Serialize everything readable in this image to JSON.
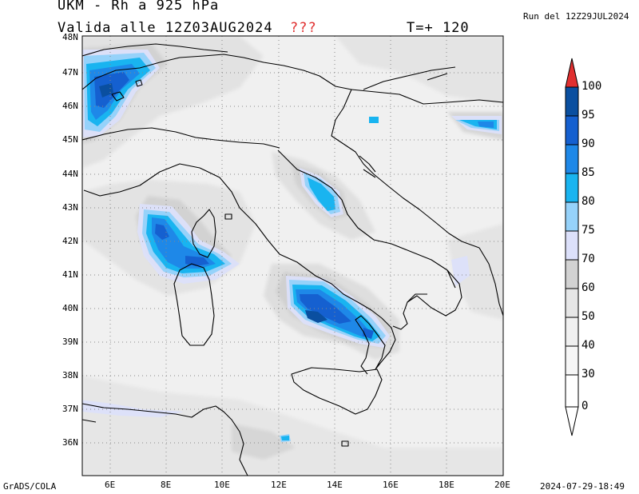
{
  "header": {
    "title": "UKM - Rh a 925 hPa",
    "valid": "Valida alle 12Z03AUG2024",
    "flag": "???",
    "lead": "T=+ 120",
    "run": "Run del 12Z29JUL2024"
  },
  "footer": {
    "left": "GrADS/COLA",
    "right": "2024-07-29-18:49"
  },
  "axes": {
    "lat_labels": [
      "48N",
      "47N",
      "46N",
      "45N",
      "44N",
      "43N",
      "42N",
      "41N",
      "40N",
      "39N",
      "38N",
      "37N",
      "36N"
    ],
    "lon_labels": [
      "6E",
      "8E",
      "10E",
      "12E",
      "14E",
      "16E",
      "18E",
      "20E"
    ],
    "lat_range": [
      35.2,
      48.0
    ],
    "lon_range": [
      5.0,
      20.0
    ]
  },
  "colorbar": {
    "labels": [
      "100",
      "95",
      "90",
      "85",
      "80",
      "75",
      "70",
      "60",
      "50",
      "40",
      "30",
      "0"
    ],
    "colors": {
      "over": "#e03030",
      "c95_100": "#0a4fa0",
      "c90_95": "#1560d0",
      "c85_90": "#1e88e8",
      "c80_85": "#19b4f0",
      "c75_80": "#96d2fa",
      "c70_75": "#dce0fa",
      "c60_70": "#d2d2d2",
      "c50_60": "#e6e6e6",
      "c40_50": "#f0f0f0",
      "c30_40": "#f6f6f6",
      "c0_30": "#ffffff"
    }
  },
  "map": {
    "coast_color": "#000000",
    "grid": "dotted"
  }
}
